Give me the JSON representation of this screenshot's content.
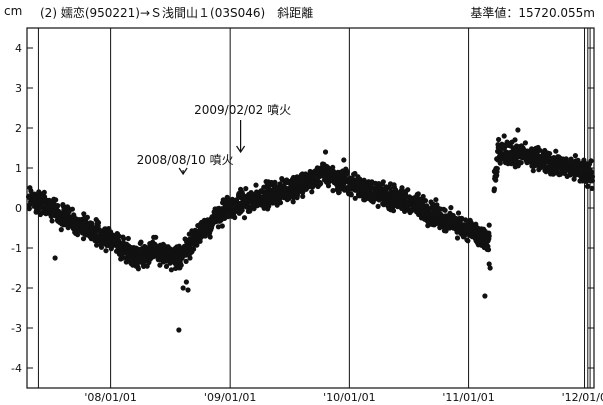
{
  "header": {
    "unit": "cm",
    "title": "(2) 嬬恋(950221)→Ｓ浅間山１(03S046)　斜距離",
    "baseline": "基準値：15720.055m"
  },
  "chart_data": {
    "type": "scatter",
    "title": "(2) 嬬恋(950221)→Ｓ浅間山１(03S046)　斜距離",
    "ylabel": "cm",
    "ylim": [
      -4.5,
      4.5
    ],
    "yticks": [
      4,
      3,
      2,
      1,
      0,
      -1,
      -2,
      -3,
      -4
    ],
    "xlim": [
      "2007-04-20",
      "2012-01-20"
    ],
    "xticks": [
      {
        "date": "2008-01-01",
        "label": "'08/01/01"
      },
      {
        "date": "2009-01-01",
        "label": "'09/01/01"
      },
      {
        "date": "2010-01-01",
        "label": "'10/01/01"
      },
      {
        "date": "2011-01-01",
        "label": "'11/01/01"
      },
      {
        "date": "2012-01-01",
        "label": "'12/01/01"
      }
    ],
    "grid": true,
    "trend": [
      {
        "date": "2007-04-25",
        "y": 0.25
      },
      {
        "date": "2007-07-01",
        "y": 0.0
      },
      {
        "date": "2007-10-01",
        "y": -0.45
      },
      {
        "date": "2008-01-01",
        "y": -0.8
      },
      {
        "date": "2008-03-15",
        "y": -1.2
      },
      {
        "date": "2008-05-15",
        "y": -1.05
      },
      {
        "date": "2008-07-20",
        "y": -1.3
      },
      {
        "date": "2008-08-10",
        "y": -1.1
      },
      {
        "date": "2008-10-01",
        "y": -0.6
      },
      {
        "date": "2008-12-01",
        "y": -0.15
      },
      {
        "date": "2009-02-02",
        "y": 0.1
      },
      {
        "date": "2009-05-01",
        "y": 0.35
      },
      {
        "date": "2009-08-01",
        "y": 0.55
      },
      {
        "date": "2009-10-15",
        "y": 0.85
      },
      {
        "date": "2010-01-01",
        "y": 0.6
      },
      {
        "date": "2010-04-01",
        "y": 0.35
      },
      {
        "date": "2010-07-01",
        "y": 0.15
      },
      {
        "date": "2010-10-01",
        "y": -0.2
      },
      {
        "date": "2011-01-01",
        "y": -0.55
      },
      {
        "date": "2011-03-01",
        "y": -0.9
      },
      {
        "date": "2011-04-01",
        "y": 1.35
      },
      {
        "date": "2011-07-01",
        "y": 1.3
      },
      {
        "date": "2011-10-01",
        "y": 1.1
      },
      {
        "date": "2012-01-15",
        "y": 0.85
      }
    ],
    "outliers": [
      {
        "date": "2008-07-28",
        "y": -3.05
      },
      {
        "date": "2008-08-10",
        "y": -2.0
      },
      {
        "date": "2008-08-20",
        "y": -1.85
      },
      {
        "date": "2008-08-25",
        "y": -2.05
      },
      {
        "date": "2007-07-15",
        "y": -1.25
      },
      {
        "date": "2011-02-20",
        "y": -2.2
      },
      {
        "date": "2011-03-05",
        "y": -1.4
      },
      {
        "date": "2011-03-08",
        "y": -1.5
      },
      {
        "date": "2009-10-20",
        "y": 1.4
      },
      {
        "date": "2009-12-15",
        "y": 1.2
      },
      {
        "date": "2011-06-01",
        "y": 1.95
      },
      {
        "date": "2011-04-20",
        "y": 1.8
      }
    ],
    "annotations": [
      {
        "text": "2008/08/10 噴火",
        "date": "2008-08-10",
        "arrow_from": 0.95,
        "arrow_to": 0.85
      },
      {
        "text": "2009/02/02 噴火",
        "date": "2009-02-02",
        "arrow_from": 2.2,
        "arrow_to": 1.4
      }
    ],
    "events": [
      "2007-05-25",
      "2011-12-22",
      "2012-01-08"
    ]
  }
}
